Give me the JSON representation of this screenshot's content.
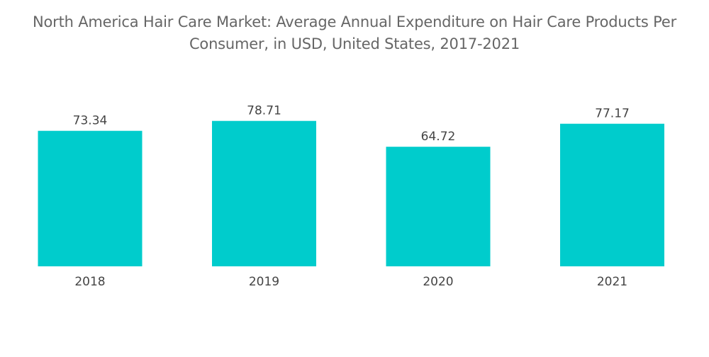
{
  "chart_data": {
    "type": "bar",
    "title": "North America Hair Care Market: Average Annual Expenditure on Hair Care Products Per Consumer, in USD, United States, 2017-2021",
    "title_lines": [
      "North America Hair Care Market: Average Annual Expenditure on Hair Care Products Per",
      "Consumer, in USD, United States, 2017-2021"
    ],
    "categories": [
      "2018",
      "2019",
      "2020",
      "2021"
    ],
    "values": [
      73.34,
      78.71,
      64.72,
      77.17
    ],
    "value_labels": [
      "73.34",
      "78.71",
      "64.72",
      "77.17"
    ],
    "xlabel": "",
    "ylabel": "",
    "ylim": [
      0,
      80
    ],
    "grid": false,
    "legend": "none",
    "bar_color": "#00cccc"
  }
}
